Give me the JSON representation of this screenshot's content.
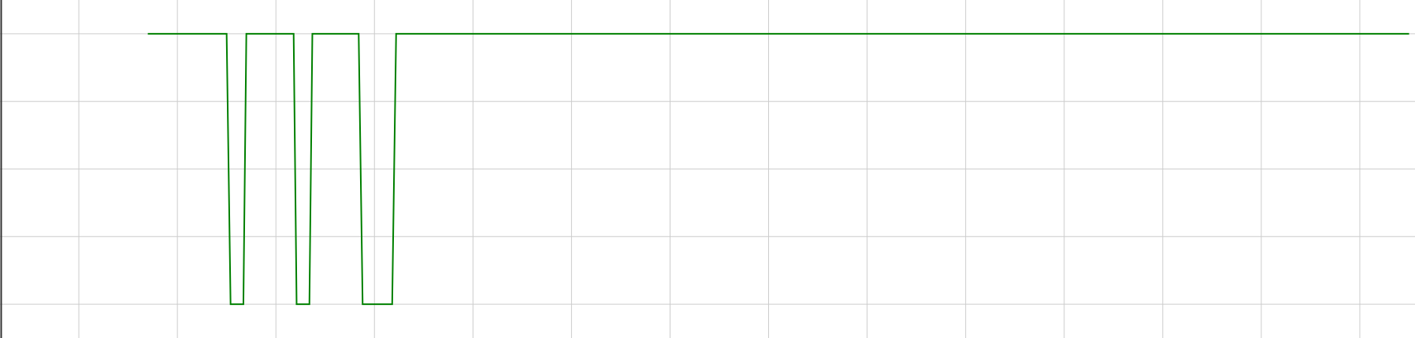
{
  "chart_data": {
    "type": "line",
    "title": "",
    "xlabel": "",
    "ylabel": "",
    "grid": true,
    "colors": {
      "series": "#008000",
      "grid": "#cccccc",
      "axis": "#333333",
      "background": "#ffffff"
    },
    "xlim": [
      0,
      14.36
    ],
    "ylim": [
      -0.5,
      4.5
    ],
    "xticks": [
      0.8,
      1.8,
      2.8,
      3.8,
      4.8,
      5.8,
      6.8,
      7.8,
      8.8,
      9.8,
      10.8,
      11.8,
      12.8,
      13.8
    ],
    "yticks": [
      0,
      1,
      2,
      3,
      4
    ],
    "series": [
      {
        "points": [
          [
            1.5,
            4
          ],
          [
            2.3,
            4
          ],
          [
            2.34,
            0
          ],
          [
            2.47,
            0
          ],
          [
            2.5,
            4
          ],
          [
            2.98,
            4
          ],
          [
            3.01,
            0
          ],
          [
            3.14,
            0
          ],
          [
            3.17,
            4
          ],
          [
            3.64,
            4
          ],
          [
            3.68,
            0
          ],
          [
            3.98,
            0
          ],
          [
            4.02,
            4
          ],
          [
            14.3,
            4
          ]
        ]
      }
    ]
  }
}
